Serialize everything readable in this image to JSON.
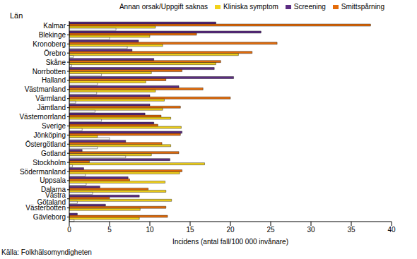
{
  "chart_data": {
    "type": "bar",
    "orientation": "horizontal",
    "y_label": "Län",
    "x_label": "Incidens (antal fall/100 000 invånare)",
    "source": "Källa: Folkhälsomyndigheten",
    "categories": [
      "Kalmar",
      "Blekinge",
      "Kronoberg",
      "Örebro",
      "Skåne",
      "Norrbotten",
      "Halland",
      "Västmanland",
      "Värmland",
      "Jämtland",
      "Västernorrland",
      "Sverige",
      "Jönköping",
      "Östergötland",
      "Gotland",
      "Stockholm",
      "Södermanland",
      "Uppsala",
      "Dalarna",
      "Västra Götaland",
      "Västerbotten",
      "Gävleborg"
    ],
    "series": [
      {
        "name": "Screening",
        "color": "#5c2d82",
        "values": [
          18.2,
          23.8,
          8.6,
          7.8,
          10.5,
          18,
          20.4,
          13.6,
          10,
          10,
          9.4,
          10.5,
          14,
          7,
          1.6,
          12.5,
          1.8,
          7.3,
          3.8,
          8.7,
          4.5,
          1
        ]
      },
      {
        "name": "Smittspårning",
        "color": "#e46c0a",
        "values": [
          37.4,
          15.8,
          25.8,
          22.7,
          18.8,
          14,
          12,
          16.6,
          20,
          13.8,
          11.4,
          11,
          13.8,
          11.5,
          13.6,
          2.5,
          14,
          7.5,
          9.8,
          5,
          12,
          12.2
        ]
      },
      {
        "name": "Kliniska symptom",
        "color": "#f2d21b",
        "values": [
          10.7,
          10,
          11.6,
          21,
          18.2,
          10.2,
          9.5,
          10.7,
          11.8,
          11.6,
          12.6,
          13.9,
          3.5,
          12.6,
          10.2,
          16.8,
          13.7,
          11.9,
          12,
          12.7,
          8.8,
          8.7
        ]
      },
      {
        "name": "Annan orsak/Uppgift saknas",
        "color": "#ffffff",
        "values": [
          5.8,
          5,
          7.2,
          0.5,
          0.3,
          4,
          3.5,
          3.4,
          0.8,
          3.2,
          4,
          1.6,
          5,
          3.5,
          7,
          0.4,
          2,
          2.1,
          2.9,
          1,
          0,
          0.6
        ]
      }
    ],
    "xlim": [
      0,
      40
    ],
    "xticks": [
      0,
      5,
      10,
      15,
      20,
      25,
      30,
      35,
      40
    ],
    "grid": false,
    "legend": "top"
  }
}
